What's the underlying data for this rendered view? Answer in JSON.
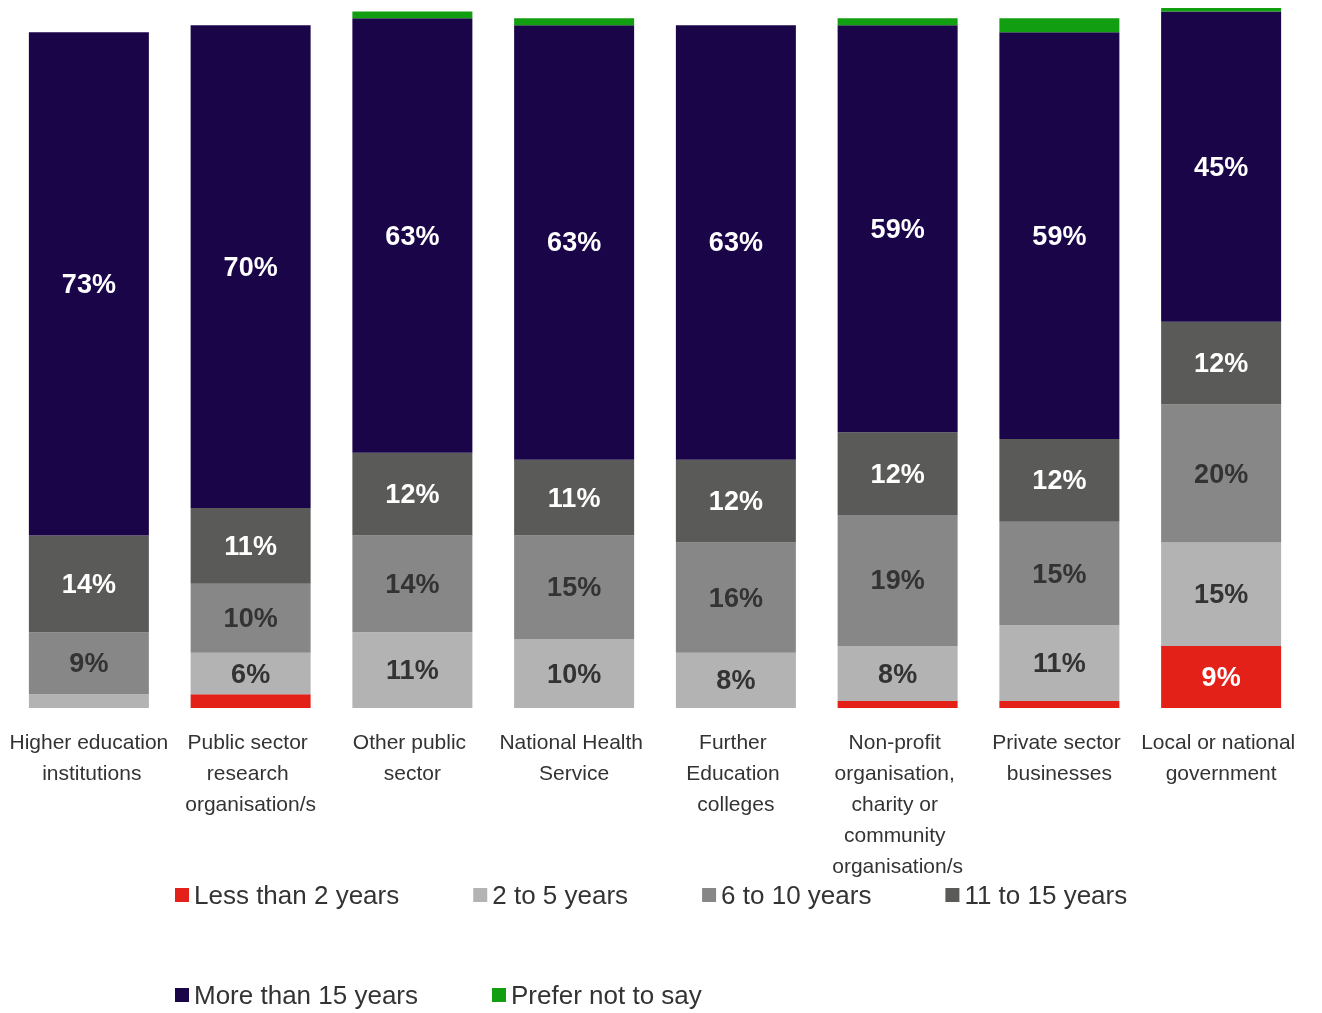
{
  "chart_data": {
    "type": "bar",
    "stacked": true,
    "legend": "bottom",
    "categories": [
      "Higher education institutions",
      "Public sector research organisation/s",
      "Other public sector",
      "National Health Service",
      "Further Education colleges",
      "Non-profit organisation, charity or community organisation/s",
      "Private sector businesses",
      "Local or national government"
    ],
    "series": [
      {
        "name": "Less than 2 years",
        "color": "#e32119",
        "values": [
          0,
          2,
          0,
          0,
          0,
          1,
          1,
          9
        ],
        "value_labels": [
          null,
          null,
          null,
          null,
          null,
          null,
          null,
          "9%"
        ]
      },
      {
        "name": "2 to 5 years",
        "color": "#b3b3b3",
        "values": [
          2,
          6,
          11,
          10,
          8,
          8,
          11,
          15
        ],
        "value_labels": [
          null,
          "6%",
          "11%",
          "10%",
          "8%",
          "8%",
          "11%",
          "15%"
        ]
      },
      {
        "name": "6 to 10 years",
        "color": "#878787",
        "values": [
          9,
          10,
          14,
          15,
          16,
          19,
          15,
          20
        ],
        "value_labels": [
          "9%",
          "10%",
          "14%",
          "15%",
          "16%",
          "19%",
          "15%",
          "20%"
        ]
      },
      {
        "name": "11 to 15 years",
        "color": "#5a5a58",
        "values": [
          14,
          11,
          12,
          11,
          12,
          12,
          12,
          12
        ],
        "value_labels": [
          "14%",
          "11%",
          "12%",
          "11%",
          "12%",
          "12%",
          "12%",
          "12%"
        ]
      },
      {
        "name": "More than 15 years",
        "color": "#1a0548",
        "values": [
          73,
          70,
          63,
          63,
          63,
          59,
          59,
          45
        ],
        "value_labels": [
          "73%",
          "70%",
          "63%",
          "63%",
          "63%",
          "59%",
          "59%",
          "45%"
        ]
      },
      {
        "name": "Prefer not to say",
        "color": "#119e11",
        "values": [
          0,
          0,
          1,
          1,
          0,
          1,
          2,
          0.5
        ],
        "value_labels": [
          null,
          null,
          null,
          null,
          null,
          null,
          null,
          null
        ]
      }
    ]
  }
}
